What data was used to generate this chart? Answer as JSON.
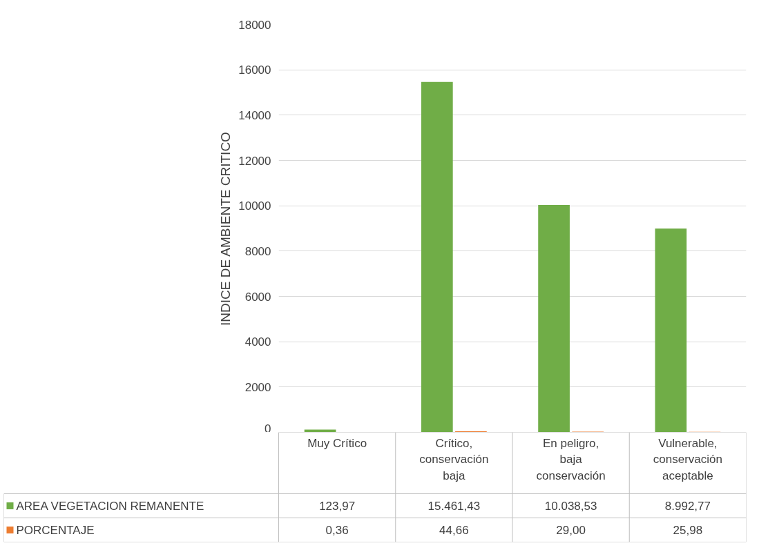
{
  "chart_data": {
    "type": "bar",
    "ylabel": "INDICE DE AMBIENTE CRITICO",
    "categories": [
      "Muy Crítico",
      "Crítico, conservación baja",
      "En peligro, baja conservación",
      "Vulnerable, conservación aceptable"
    ],
    "series": [
      {
        "name": "AREA VEGETACION REMANENTE",
        "color": "#70ad47",
        "values": [
          123.97,
          15461.43,
          10038.53,
          8992.77
        ],
        "value_labels": [
          "123,97",
          "15.461,43",
          "10.038,53",
          "8.992,77"
        ]
      },
      {
        "name": "PORCENTAJE",
        "color": "#ed7d31",
        "values": [
          0.36,
          44.66,
          29.0,
          25.98
        ],
        "value_labels": [
          "0,36",
          "44,66",
          "29,00",
          "25,98"
        ]
      }
    ],
    "ylim": [
      0,
      18000
    ],
    "yticks": [
      0,
      2000,
      4000,
      6000,
      8000,
      10000,
      12000,
      14000,
      16000,
      18000
    ],
    "grid": "y",
    "legend": "bottom"
  }
}
